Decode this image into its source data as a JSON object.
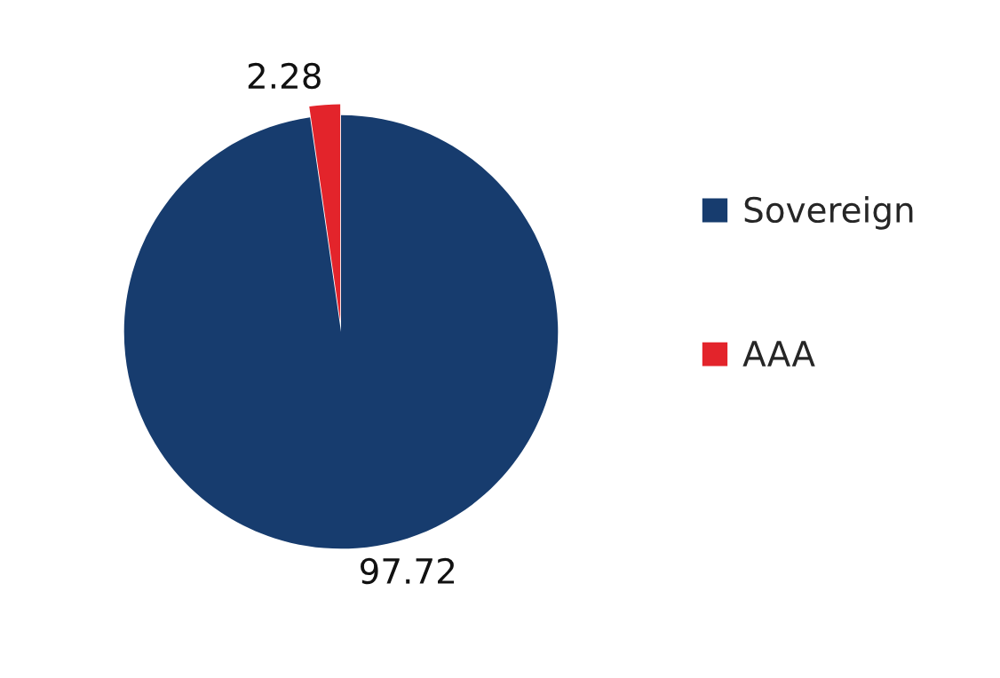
{
  "chart_data": {
    "type": "pie",
    "categories": [
      "Sovereign",
      "AAA"
    ],
    "values": [
      97.72,
      2.28
    ],
    "colors": [
      "#173c6e",
      "#e3242b"
    ],
    "data_labels": true,
    "legend": "right"
  }
}
